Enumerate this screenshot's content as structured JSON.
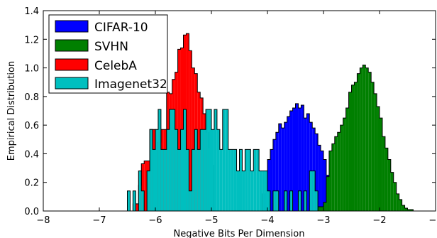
{
  "chart_data": {
    "type": "histogram",
    "xlabel": "Negative Bits Per Dimension",
    "ylabel": "Empirical Distribution",
    "xlim": [
      -8,
      -1
    ],
    "ylim": [
      0.0,
      1.4
    ],
    "xticks": [
      -8,
      -7,
      -6,
      -5,
      -4,
      -3,
      -2,
      -1
    ],
    "xtick_labels": [
      "−8",
      "−7",
      "−6",
      "−5",
      "−4",
      "−3",
      "−2",
      "−1"
    ],
    "yticks": [
      0.0,
      0.2,
      0.4,
      0.6,
      0.8,
      1.0,
      1.2,
      1.4
    ],
    "ytick_labels": [
      "0.0",
      "0.2",
      "0.4",
      "0.6",
      "0.8",
      "1.0",
      "1.2",
      "1.4"
    ],
    "grid": false,
    "legend_position": "top-left",
    "series": [
      {
        "name": "CIFAR-10",
        "color": "#0000ff",
        "bins": [
          [
            -4.1,
            -4.0,
            0.12
          ],
          [
            -4.0,
            -3.95,
            0.36
          ],
          [
            -3.95,
            -3.9,
            0.43
          ],
          [
            -3.9,
            -3.85,
            0.5
          ],
          [
            -3.85,
            -3.8,
            0.55
          ],
          [
            -3.8,
            -3.75,
            0.61
          ],
          [
            -3.75,
            -3.7,
            0.58
          ],
          [
            -3.7,
            -3.65,
            0.62
          ],
          [
            -3.65,
            -3.6,
            0.66
          ],
          [
            -3.6,
            -3.55,
            0.7
          ],
          [
            -3.55,
            -3.5,
            0.72
          ],
          [
            -3.5,
            -3.45,
            0.75
          ],
          [
            -3.45,
            -3.4,
            0.72
          ],
          [
            -3.4,
            -3.35,
            0.74
          ],
          [
            -3.35,
            -3.3,
            0.65
          ],
          [
            -3.3,
            -3.25,
            0.68
          ],
          [
            -3.25,
            -3.2,
            0.62
          ],
          [
            -3.2,
            -3.15,
            0.58
          ],
          [
            -3.15,
            -3.1,
            0.54
          ],
          [
            -3.1,
            -3.05,
            0.46
          ],
          [
            -3.05,
            -3.0,
            0.42
          ],
          [
            -3.0,
            -2.95,
            0.36
          ],
          [
            -2.95,
            -2.9,
            0.25
          ]
        ]
      },
      {
        "name": "SVHN",
        "color": "#007f00",
        "bins": [
          [
            -3.1,
            -3.0,
            0.03
          ],
          [
            -3.0,
            -2.95,
            0.06
          ],
          [
            -2.95,
            -2.9,
            0.24
          ],
          [
            -2.9,
            -2.85,
            0.42
          ],
          [
            -2.85,
            -2.8,
            0.47
          ],
          [
            -2.8,
            -2.75,
            0.52
          ],
          [
            -2.75,
            -2.7,
            0.55
          ],
          [
            -2.7,
            -2.65,
            0.6
          ],
          [
            -2.65,
            -2.6,
            0.65
          ],
          [
            -2.6,
            -2.55,
            0.72
          ],
          [
            -2.55,
            -2.5,
            0.83
          ],
          [
            -2.5,
            -2.45,
            0.88
          ],
          [
            -2.45,
            -2.4,
            0.9
          ],
          [
            -2.4,
            -2.35,
            0.96
          ],
          [
            -2.35,
            -2.3,
            1.0
          ],
          [
            -2.3,
            -2.25,
            1.02
          ],
          [
            -2.25,
            -2.2,
            1.0
          ],
          [
            -2.2,
            -2.15,
            0.97
          ],
          [
            -2.15,
            -2.1,
            0.9
          ],
          [
            -2.1,
            -2.05,
            0.82
          ],
          [
            -2.05,
            -2.0,
            0.73
          ],
          [
            -2.0,
            -1.95,
            0.65
          ],
          [
            -1.95,
            -1.9,
            0.52
          ],
          [
            -1.9,
            -1.85,
            0.44
          ],
          [
            -1.85,
            -1.8,
            0.36
          ],
          [
            -1.8,
            -1.75,
            0.27
          ],
          [
            -1.75,
            -1.7,
            0.2
          ],
          [
            -1.7,
            -1.65,
            0.12
          ],
          [
            -1.65,
            -1.6,
            0.08
          ],
          [
            -1.6,
            -1.55,
            0.04
          ],
          [
            -1.55,
            -1.5,
            0.02
          ],
          [
            -1.5,
            -1.4,
            0.01
          ]
        ]
      },
      {
        "name": "CelebA",
        "color": "#ff0000",
        "bins": [
          [
            -6.4,
            -6.3,
            0.05
          ],
          [
            -6.3,
            -6.25,
            0.18
          ],
          [
            -6.25,
            -6.2,
            0.33
          ],
          [
            -6.2,
            -6.1,
            0.35
          ],
          [
            -6.1,
            -6.0,
            0.57
          ],
          [
            -6.0,
            -5.9,
            0.48
          ],
          [
            -5.9,
            -5.85,
            0.57
          ],
          [
            -5.85,
            -5.8,
            0.57
          ],
          [
            -5.8,
            -5.75,
            0.83
          ],
          [
            -5.75,
            -5.7,
            0.82
          ],
          [
            -5.7,
            -5.65,
            0.92
          ],
          [
            -5.65,
            -5.6,
            0.97
          ],
          [
            -5.6,
            -5.55,
            1.13
          ],
          [
            -5.55,
            -5.5,
            1.14
          ],
          [
            -5.5,
            -5.45,
            1.23
          ],
          [
            -5.45,
            -5.4,
            1.24
          ],
          [
            -5.4,
            -5.35,
            1.12
          ],
          [
            -5.35,
            -5.3,
            1.0
          ],
          [
            -5.3,
            -5.25,
            0.96
          ],
          [
            -5.25,
            -5.2,
            0.83
          ],
          [
            -5.2,
            -5.15,
            0.79
          ],
          [
            -5.15,
            -5.1,
            0.68
          ],
          [
            -5.1,
            -5.05,
            0.55
          ],
          [
            -5.05,
            -5.0,
            0.44
          ],
          [
            -5.0,
            -4.95,
            0.32
          ]
        ]
      },
      {
        "name": "Imagenet32",
        "color": "#00bfbf",
        "bins": [
          [
            -6.6,
            -6.5,
            0.0
          ],
          [
            -6.5,
            -6.45,
            0.14
          ],
          [
            -6.45,
            -6.4,
            0.0
          ],
          [
            -6.4,
            -6.35,
            0.14
          ],
          [
            -6.35,
            -6.3,
            0.0
          ],
          [
            -6.3,
            -6.25,
            0.28
          ],
          [
            -6.25,
            -6.2,
            0.14
          ],
          [
            -6.2,
            -6.15,
            0.0
          ],
          [
            -6.15,
            -6.1,
            0.28
          ],
          [
            -6.1,
            -6.05,
            0.57
          ],
          [
            -6.05,
            -6.0,
            0.43
          ],
          [
            -6.0,
            -5.95,
            0.57
          ],
          [
            -5.95,
            -5.9,
            0.71
          ],
          [
            -5.9,
            -5.85,
            0.43
          ],
          [
            -5.85,
            -5.8,
            0.43
          ],
          [
            -5.8,
            -5.75,
            0.57
          ],
          [
            -5.75,
            -5.7,
            0.71
          ],
          [
            -5.7,
            -5.65,
            0.71
          ],
          [
            -5.65,
            -5.6,
            0.57
          ],
          [
            -5.6,
            -5.55,
            0.43
          ],
          [
            -5.55,
            -5.5,
            0.57
          ],
          [
            -5.5,
            -5.45,
            0.71
          ],
          [
            -5.45,
            -5.4,
            0.43
          ],
          [
            -5.4,
            -5.35,
            0.14
          ],
          [
            -5.35,
            -5.3,
            0.43
          ],
          [
            -5.3,
            -5.25,
            0.57
          ],
          [
            -5.25,
            -5.2,
            0.43
          ],
          [
            -5.2,
            -5.15,
            0.57
          ],
          [
            -5.15,
            -5.1,
            0.57
          ],
          [
            -5.1,
            -5.05,
            0.71
          ],
          [
            -5.05,
            -5.0,
            0.71
          ],
          [
            -5.0,
            -4.95,
            0.57
          ],
          [
            -4.95,
            -4.9,
            0.71
          ],
          [
            -4.9,
            -4.85,
            0.57
          ],
          [
            -4.85,
            -4.8,
            0.43
          ],
          [
            -4.8,
            -4.75,
            0.71
          ],
          [
            -4.75,
            -4.7,
            0.71
          ],
          [
            -4.7,
            -4.65,
            0.43
          ],
          [
            -4.65,
            -4.6,
            0.43
          ],
          [
            -4.6,
            -4.55,
            0.43
          ],
          [
            -4.55,
            -4.5,
            0.28
          ],
          [
            -4.5,
            -4.45,
            0.43
          ],
          [
            -4.45,
            -4.4,
            0.28
          ],
          [
            -4.4,
            -4.35,
            0.43
          ],
          [
            -4.35,
            -4.3,
            0.43
          ],
          [
            -4.3,
            -4.25,
            0.28
          ],
          [
            -4.25,
            -4.2,
            0.43
          ],
          [
            -4.2,
            -4.15,
            0.43
          ],
          [
            -4.15,
            -4.1,
            0.28
          ],
          [
            -4.1,
            -4.05,
            0.28
          ],
          [
            -4.05,
            -4.0,
            0.28
          ],
          [
            -4.0,
            -3.95,
            0.14
          ],
          [
            -3.95,
            -3.9,
            0.0
          ],
          [
            -3.9,
            -3.85,
            0.14
          ],
          [
            -3.85,
            -3.8,
            0.14
          ],
          [
            -3.8,
            -3.75,
            0.0
          ],
          [
            -3.75,
            -3.7,
            0.0
          ],
          [
            -3.7,
            -3.65,
            0.14
          ],
          [
            -3.65,
            -3.6,
            0.0
          ],
          [
            -3.6,
            -3.55,
            0.14
          ],
          [
            -3.55,
            -3.5,
            0.0
          ],
          [
            -3.5,
            -3.45,
            0.0
          ],
          [
            -3.45,
            -3.4,
            0.14
          ],
          [
            -3.4,
            -3.35,
            0.0
          ],
          [
            -3.35,
            -3.3,
            0.14
          ],
          [
            -3.3,
            -3.25,
            0.0
          ],
          [
            -3.25,
            -3.2,
            0.28
          ],
          [
            -3.2,
            -3.15,
            0.28
          ],
          [
            -3.15,
            -3.1,
            0.14
          ],
          [
            -3.1,
            -3.05,
            0.0
          ]
        ]
      }
    ],
    "draw_order": [
      "CIFAR-10",
      "SVHN",
      "CelebA",
      "Imagenet32"
    ]
  }
}
